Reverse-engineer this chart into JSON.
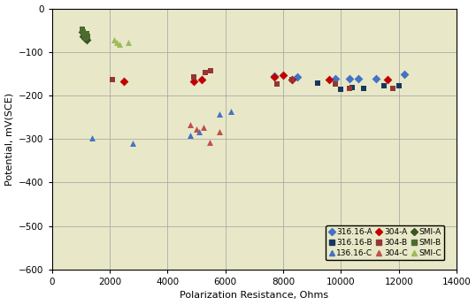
{
  "xlabel": "Polarization Resistance, Ohms",
  "ylabel": "Potential, mV(SCE)",
  "xlim": [
    0,
    14000
  ],
  "ylim": [
    -600,
    0
  ],
  "xticks": [
    0,
    2000,
    4000,
    6000,
    8000,
    10000,
    12000,
    14000
  ],
  "yticks": [
    0,
    -100,
    -200,
    -300,
    -400,
    -500,
    -600
  ],
  "plot_bg": "#e8e8c8",
  "fig_bg": "#ffffff",
  "series": {
    "316.16-A": {
      "x": [
        7700,
        8500,
        9800,
        10300,
        10600,
        11200,
        12200
      ],
      "y": [
        -155,
        -158,
        -162,
        -162,
        -162,
        -162,
        -152
      ],
      "color": "#4472c4",
      "marker": "D",
      "ms": 5
    },
    "316.16-B": {
      "x": [
        9200,
        10000,
        10400,
        10800,
        11500,
        12000
      ],
      "y": [
        -172,
        -185,
        -182,
        -183,
        -178,
        -178
      ],
      "color": "#17375e",
      "marker": "s",
      "ms": 5
    },
    "136.16-C": {
      "x": [
        1400,
        2800,
        4800,
        5100,
        5800,
        6200
      ],
      "y": [
        -298,
        -310,
        -292,
        -283,
        -243,
        -237
      ],
      "color": "#4472c4",
      "marker": "^",
      "ms": 5
    },
    "304-A": {
      "x": [
        2500,
        4900,
        5200,
        7700,
        8000,
        8300,
        9600,
        11600
      ],
      "y": [
        -168,
        -168,
        -163,
        -158,
        -153,
        -163,
        -163,
        -163
      ],
      "color": "#c00000",
      "marker": "D",
      "ms": 5
    },
    "304-B": {
      "x": [
        2100,
        4900,
        5300,
        5500,
        7800,
        8300,
        9800,
        10300,
        11800
      ],
      "y": [
        -163,
        -158,
        -148,
        -143,
        -173,
        -163,
        -173,
        -183,
        -183
      ],
      "color": "#943634",
      "marker": "s",
      "ms": 5
    },
    "304-C": {
      "x": [
        4800,
        5000,
        5250,
        5450,
        5800
      ],
      "y": [
        -268,
        -278,
        -273,
        -308,
        -283
      ],
      "color": "#c0504d",
      "marker": "^",
      "ms": 5
    },
    "SMI-A": {
      "x": [
        1050,
        1100,
        1130,
        1160,
        1200
      ],
      "y": [
        -53,
        -63,
        -58,
        -68,
        -73
      ],
      "color": "#375623",
      "marker": "D",
      "ms": 5
    },
    "SMI-B": {
      "x": [
        1050,
        1080,
        1110,
        1140,
        1170,
        1200,
        1230
      ],
      "y": [
        -48,
        -53,
        -58,
        -63,
        -68,
        -58,
        -63
      ],
      "color": "#4e6b2e",
      "marker": "s",
      "ms": 5
    },
    "SMI-C": {
      "x": [
        2150,
        2250,
        2350,
        2650
      ],
      "y": [
        -73,
        -78,
        -83,
        -78
      ],
      "color": "#9bbb59",
      "marker": "^",
      "ms": 5
    }
  },
  "legend_order": [
    "316.16-A",
    "316.16-B",
    "136.16-C",
    "304-A",
    "304-B",
    "304-C",
    "SMI-A",
    "SMI-B",
    "SMI-C"
  ]
}
